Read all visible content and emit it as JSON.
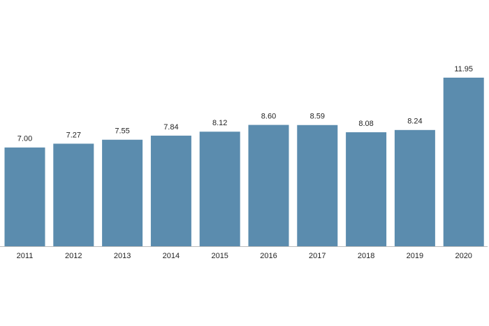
{
  "chart_data": {
    "type": "bar",
    "categories": [
      "2011",
      "2012",
      "2013",
      "2014",
      "2015",
      "2016",
      "2017",
      "2018",
      "2019",
      "2020"
    ],
    "values": [
      7,
      7.27,
      7.55,
      7.84,
      8.12,
      8.6,
      8.59,
      8.08,
      8.24,
      11.95
    ],
    "value_labels": [
      "7.00",
      "7.27",
      "7.55",
      "7.84",
      "8.12",
      "8.60",
      "8.59",
      "8.08",
      "8.24",
      "11.95"
    ],
    "color": "#5b8cae"
  }
}
